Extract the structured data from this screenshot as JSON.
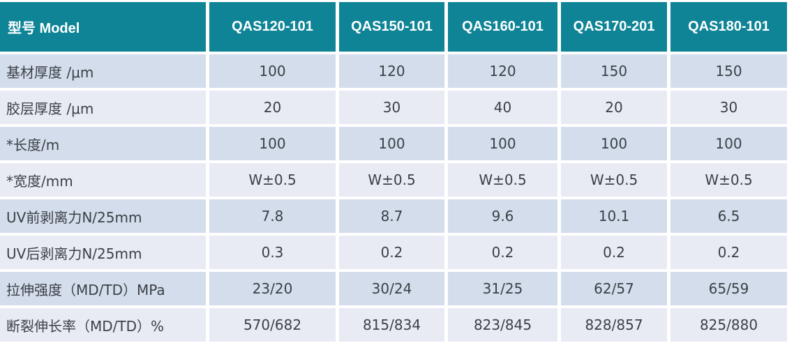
{
  "table": {
    "colors": {
      "header_bg": "#0e8496",
      "header_text": "#ffffff",
      "row_dark_bg": "#d3ddec",
      "row_light_bg": "#e9ebf4",
      "body_text": "#3c4046"
    },
    "header": {
      "model_label": "型号 Model",
      "columns": [
        "QAS120-101",
        "QAS150-101",
        "QAS160-101",
        "QAS170-201",
        "QAS180-101"
      ]
    },
    "rows": [
      {
        "label": "基材厚度  /μm",
        "values": [
          "100",
          "120",
          "120",
          "150",
          "150"
        ]
      },
      {
        "label": "胶层厚度 /μm",
        "values": [
          "20",
          "30",
          "40",
          "20",
          "30"
        ]
      },
      {
        "label": "*长度/m",
        "values": [
          "100",
          "100",
          "100",
          "100",
          "100"
        ]
      },
      {
        "label": "*宽度/mm",
        "values": [
          "W±0.5",
          "W±0.5",
          "W±0.5",
          "W±0.5",
          "W±0.5"
        ]
      },
      {
        "label": "UV前剥离力N/25mm",
        "values": [
          "7.8",
          "8.7",
          "9.6",
          "10.1",
          "6.5"
        ]
      },
      {
        "label": "UV后剥离力N/25mm",
        "values": [
          "0.3",
          "0.2",
          "0.2",
          "0.2",
          "0.2"
        ]
      },
      {
        "label": "拉伸强度（MD/TD）MPa",
        "values": [
          "23/20",
          "30/24",
          "31/25",
          "62/57",
          "65/59"
        ]
      },
      {
        "label": "断裂伸长率（MD/TD）%",
        "values": [
          "570/682",
          "815/834",
          "823/845",
          "828/857",
          "825/880"
        ]
      }
    ]
  }
}
